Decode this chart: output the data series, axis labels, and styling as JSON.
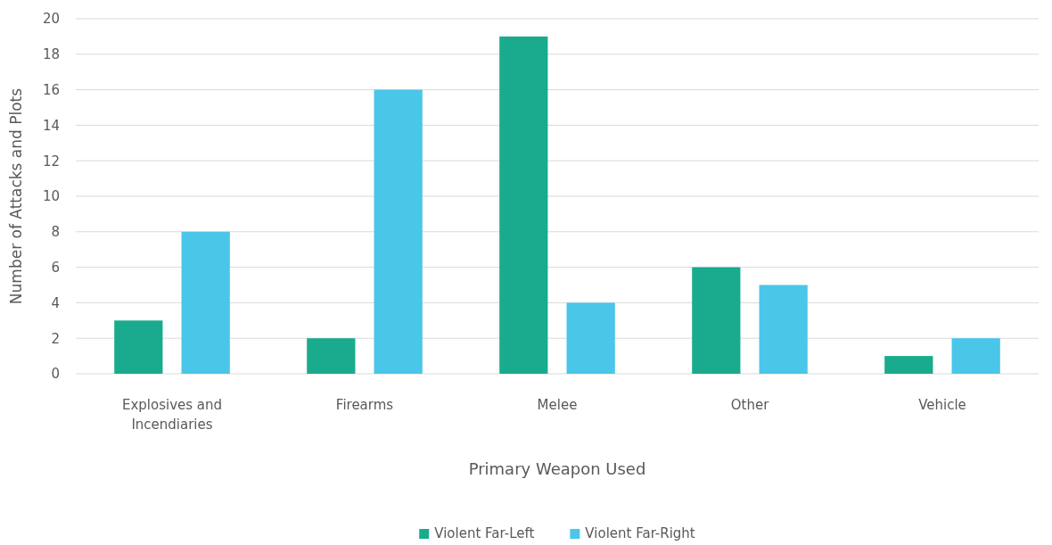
{
  "chart_data": {
    "type": "bar",
    "xlabel": "Primary Weapon Used",
    "ylabel": "Number of Attacks and Plots",
    "categories": [
      "Explosives and Incendiaries",
      "Firearms",
      "Melee",
      "Other",
      "Vehicle"
    ],
    "series": [
      {
        "name": "Violent Far-Left",
        "color": "#1aab8e",
        "values": [
          3,
          2,
          19,
          6,
          1
        ]
      },
      {
        "name": "Violent Far-Right",
        "color": "#4ac6e8",
        "values": [
          8,
          16,
          4,
          5,
          2
        ]
      }
    ],
    "ylim": [
      0,
      20
    ],
    "yticks": [
      0,
      2,
      4,
      6,
      8,
      10,
      12,
      14,
      16,
      18,
      20
    ],
    "grid": "y",
    "legend": "bottom"
  }
}
